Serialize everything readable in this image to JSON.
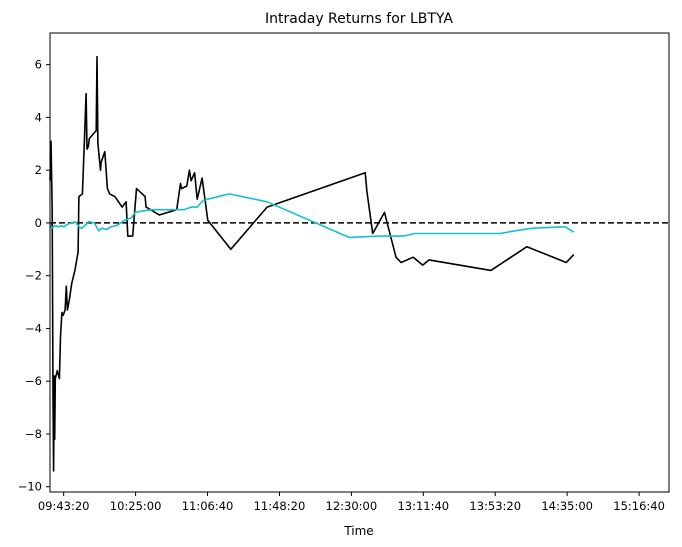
{
  "chart_data": {
    "type": "line",
    "title": "Intraday Returns for LBTYA",
    "xlabel": "Time",
    "ylabel": "",
    "xlim": [
      "09:35:25",
      "15:34:00"
    ],
    "ylim": [
      -10.2,
      7.2
    ],
    "x_ticks": [
      "09:43:20",
      "10:25:00",
      "11:06:40",
      "11:48:20",
      "12:30:00",
      "13:11:40",
      "13:53:20",
      "14:35:00",
      "15:16:40"
    ],
    "y_ticks": [
      -10,
      -8,
      -6,
      -4,
      -2,
      0,
      2,
      4,
      6
    ],
    "reference_line": {
      "y": 0,
      "style": "dashed",
      "color": "#000000"
    },
    "grid": false,
    "series": [
      {
        "color": "#000000",
        "points": [
          [
            "09:35:25",
            1.6
          ],
          [
            "09:36:00",
            3.1
          ],
          [
            "09:36:40",
            0.5
          ],
          [
            "09:37:10",
            -6.5
          ],
          [
            "09:37:30",
            -9.4
          ],
          [
            "09:37:50",
            -5.8
          ],
          [
            "09:38:10",
            -8.2
          ],
          [
            "09:38:30",
            -5.9
          ],
          [
            "09:39:40",
            -5.6
          ],
          [
            "09:40:50",
            -5.9
          ],
          [
            "09:41:30",
            -4.3
          ],
          [
            "09:42:20",
            -3.4
          ],
          [
            "09:43:00",
            -3.5
          ],
          [
            "09:44:10",
            -3.3
          ],
          [
            "09:44:50",
            -2.4
          ],
          [
            "09:45:30",
            -3.3
          ],
          [
            "09:46:40",
            -2.9
          ],
          [
            "09:48:00",
            -2.3
          ],
          [
            "09:49:50",
            -1.8
          ],
          [
            "09:51:40",
            -1.1
          ],
          [
            "09:52:10",
            1.0
          ],
          [
            "09:54:10",
            1.1
          ],
          [
            "09:55:00",
            2.5
          ],
          [
            "09:56:20",
            4.9
          ],
          [
            "09:56:50",
            2.8
          ],
          [
            "09:57:40",
            2.9
          ],
          [
            "09:58:10",
            3.2
          ],
          [
            "10:02:10",
            3.5
          ],
          [
            "10:02:40",
            6.3
          ],
          [
            "10:03:10",
            3.0
          ],
          [
            "10:04:40",
            2.0
          ],
          [
            "10:05:00",
            2.3
          ],
          [
            "10:07:10",
            2.7
          ],
          [
            "10:08:40",
            1.3
          ],
          [
            "10:10:00",
            1.1
          ],
          [
            "10:13:00",
            1.0
          ],
          [
            "10:17:10",
            0.6
          ],
          [
            "10:19:30",
            0.8
          ],
          [
            "10:20:30",
            -0.5
          ],
          [
            "10:23:20",
            -0.5
          ],
          [
            "10:25:30",
            1.3
          ],
          [
            "10:30:30",
            1.0
          ],
          [
            "10:31:00",
            0.6
          ],
          [
            "10:33:40",
            0.5
          ],
          [
            "10:38:40",
            0.3
          ],
          [
            "10:48:50",
            0.5
          ],
          [
            "10:51:00",
            1.5
          ],
          [
            "10:51:40",
            1.3
          ],
          [
            "10:54:40",
            1.4
          ],
          [
            "10:56:10",
            2.0
          ],
          [
            "10:57:10",
            1.6
          ],
          [
            "10:59:10",
            1.9
          ],
          [
            "11:00:40",
            0.9
          ],
          [
            "11:03:30",
            1.7
          ],
          [
            "11:06:50",
            0.1
          ],
          [
            "11:20:10",
            -1.0
          ],
          [
            "11:41:10",
            0.6
          ],
          [
            "12:38:00",
            1.9
          ],
          [
            "12:39:00",
            1.2
          ],
          [
            "12:42:20",
            -0.4
          ],
          [
            "12:49:10",
            0.4
          ],
          [
            "12:55:50",
            -1.3
          ],
          [
            "12:58:50",
            -1.5
          ],
          [
            "13:05:50",
            -1.3
          ],
          [
            "13:11:20",
            -1.6
          ],
          [
            "13:15:00",
            -1.4
          ],
          [
            "13:50:50",
            -1.8
          ],
          [
            "14:11:40",
            -0.9
          ],
          [
            "14:34:30",
            -1.5
          ],
          [
            "14:38:50",
            -1.2
          ]
        ]
      },
      {
        "color": "#17becf",
        "points": [
          [
            "09:35:25",
            0.0
          ],
          [
            "09:36:20",
            -0.2
          ],
          [
            "09:38:30",
            -0.1
          ],
          [
            "09:40:00",
            -0.15
          ],
          [
            "09:42:00",
            -0.1
          ],
          [
            "09:43:30",
            -0.15
          ],
          [
            "09:45:20",
            -0.05
          ],
          [
            "09:48:00",
            0.0
          ],
          [
            "09:50:00",
            0.05
          ],
          [
            "09:52:20",
            -0.15
          ],
          [
            "09:53:40",
            -0.2
          ],
          [
            "09:55:40",
            -0.1
          ],
          [
            "09:58:00",
            0.05
          ],
          [
            "10:01:00",
            0.0
          ],
          [
            "10:03:40",
            -0.3
          ],
          [
            "10:05:30",
            -0.2
          ],
          [
            "10:08:00",
            -0.25
          ],
          [
            "10:10:40",
            -0.15
          ],
          [
            "10:14:00",
            -0.1
          ],
          [
            "10:18:40",
            0.1
          ],
          [
            "10:22:40",
            0.2
          ],
          [
            "10:24:40",
            0.4
          ],
          [
            "10:28:40",
            0.45
          ],
          [
            "10:34:30",
            0.5
          ],
          [
            "10:45:00",
            0.5
          ],
          [
            "10:53:00",
            0.5
          ],
          [
            "10:57:10",
            0.6
          ],
          [
            "11:00:40",
            0.6
          ],
          [
            "11:04:10",
            0.85
          ],
          [
            "11:06:50",
            0.9
          ],
          [
            "11:19:10",
            1.1
          ],
          [
            "11:41:10",
            0.8
          ],
          [
            "12:28:40",
            -0.55
          ],
          [
            "12:46:10",
            -0.5
          ],
          [
            "12:56:00",
            -0.5
          ],
          [
            "13:00:00",
            -0.5
          ],
          [
            "13:06:30",
            -0.4
          ],
          [
            "13:13:40",
            -0.4
          ],
          [
            "13:56:00",
            -0.4
          ],
          [
            "14:05:00",
            -0.3
          ],
          [
            "14:15:00",
            -0.2
          ],
          [
            "14:31:00",
            -0.15
          ],
          [
            "14:34:00",
            -0.15
          ],
          [
            "14:38:50",
            -0.35
          ]
        ]
      }
    ]
  }
}
